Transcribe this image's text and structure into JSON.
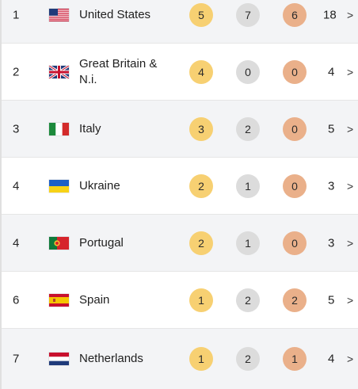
{
  "medal_table": {
    "rows": [
      {
        "rank": "1",
        "flag": "usa-flag",
        "country": "United States",
        "gold": "5",
        "silver": "7",
        "bronze": "6",
        "total": "18"
      },
      {
        "rank": "2",
        "flag": "uk-flag",
        "country": "Great Britain & N.i.",
        "gold": "4",
        "silver": "0",
        "bronze": "0",
        "total": "4"
      },
      {
        "rank": "3",
        "flag": "italy-flag",
        "country": "Italy",
        "gold": "3",
        "silver": "2",
        "bronze": "0",
        "total": "5"
      },
      {
        "rank": "4",
        "flag": "ukraine-flag",
        "country": "Ukraine",
        "gold": "2",
        "silver": "1",
        "bronze": "0",
        "total": "3"
      },
      {
        "rank": "4",
        "flag": "portugal-flag",
        "country": "Portugal",
        "gold": "2",
        "silver": "1",
        "bronze": "0",
        "total": "3"
      },
      {
        "rank": "6",
        "flag": "spain-flag",
        "country": "Spain",
        "gold": "1",
        "silver": "2",
        "bronze": "2",
        "total": "5"
      },
      {
        "rank": "7",
        "flag": "netherlands-flag",
        "country": "Netherlands",
        "gold": "1",
        "silver": "2",
        "bronze": "1",
        "total": "4"
      }
    ],
    "chevron": ">"
  },
  "colors": {
    "gold": "#f7d072",
    "silver": "#dcdcdc",
    "bronze": "#eab08a",
    "row_shaded": "#f3f4f6"
  }
}
